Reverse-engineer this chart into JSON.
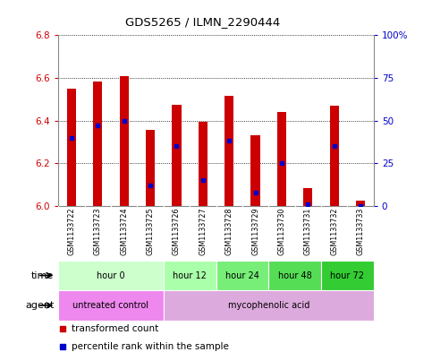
{
  "title": "GDS5265 / ILMN_2290444",
  "samples": [
    "GSM1133722",
    "GSM1133723",
    "GSM1133724",
    "GSM1133725",
    "GSM1133726",
    "GSM1133727",
    "GSM1133728",
    "GSM1133729",
    "GSM1133730",
    "GSM1133731",
    "GSM1133732",
    "GSM1133733"
  ],
  "bar_bottom": 6.0,
  "bar_tops": [
    6.55,
    6.585,
    6.61,
    6.355,
    6.475,
    6.395,
    6.515,
    6.33,
    6.44,
    6.085,
    6.47,
    6.025
  ],
  "percentile_ranks": [
    40,
    47,
    50,
    12,
    35,
    15,
    38,
    8,
    25,
    1,
    35,
    0
  ],
  "ylim_left": [
    6.0,
    6.8
  ],
  "ylim_right": [
    0,
    100
  ],
  "yticks_left": [
    6.0,
    6.2,
    6.4,
    6.6,
    6.8
  ],
  "yticks_right": [
    0,
    25,
    50,
    75,
    100
  ],
  "bar_color": "#cc0000",
  "percentile_color": "#0000cc",
  "time_groups": [
    {
      "label": "hour 0",
      "start": 0,
      "end": 4,
      "color": "#ccffcc"
    },
    {
      "label": "hour 12",
      "start": 4,
      "end": 6,
      "color": "#aaffaa"
    },
    {
      "label": "hour 24",
      "start": 6,
      "end": 8,
      "color": "#77ee77"
    },
    {
      "label": "hour 48",
      "start": 8,
      "end": 10,
      "color": "#55dd55"
    },
    {
      "label": "hour 72",
      "start": 10,
      "end": 12,
      "color": "#33cc33"
    }
  ],
  "agent_groups": [
    {
      "label": "untreated control",
      "start": 0,
      "end": 4,
      "color": "#ee88ee"
    },
    {
      "label": "mycophenolic acid",
      "start": 4,
      "end": 12,
      "color": "#ddaadd"
    }
  ],
  "legend_red": "transformed count",
  "legend_blue": "percentile rank within the sample",
  "time_label": "time",
  "agent_label": "agent",
  "bg_color": "#ffffff",
  "axis_color_left": "#cc0000",
  "axis_color_right": "#0000cc",
  "sample_bg": "#c8c8c8"
}
